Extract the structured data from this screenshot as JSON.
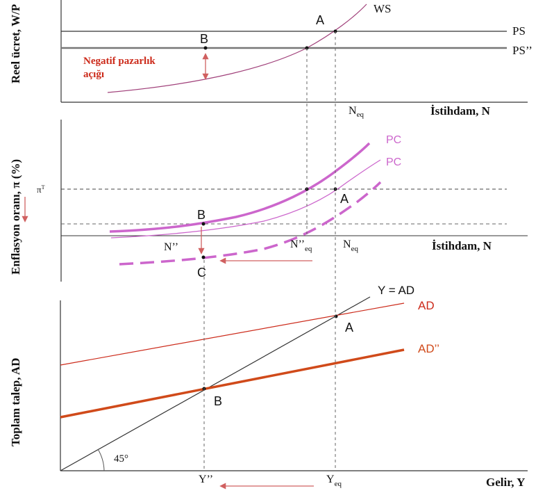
{
  "colors": {
    "axis": "#333333",
    "guide": "#555555",
    "ws": "#a0407a",
    "pc": "#cc66cc",
    "ad": "#cc2a1a",
    "ad_new": "#d04a1a",
    "arrow": "#d06060",
    "label_red": "#cc2a1a"
  },
  "panel1": {
    "ylabel": "Reel ücret, W/P",
    "xlabel": "İstihdam, N",
    "ps_label": "PS",
    "ps_new_label": "PS’’",
    "ws_label": "WS",
    "point_a": "A",
    "point_b": "B",
    "gap_label_line1": "Negatif pazarlık",
    "gap_label_line2": "açığı",
    "neq_main": "N",
    "neq_sub": "eq"
  },
  "panel2": {
    "ylabel": "Enflasyon oranı, π (%)",
    "xlabel": "İstihdam, N",
    "pc_label_1": "PC",
    "pc_label_2": "PC",
    "pi_label": "π",
    "pi_sup": "T",
    "point_a": "A",
    "point_b": "B",
    "point_c": "C",
    "n_new_main": "N’’",
    "n_new_eq_main": "N’’",
    "n_new_eq_sub": "eq",
    "neq_main": "N",
    "neq_sub": "eq"
  },
  "panel3": {
    "ylabel": "Toplam talep, AD",
    "xlabel": "Gelir, Y",
    "yad_label": "Y = AD",
    "ad_label": "AD",
    "ad_new_label": "AD’’",
    "angle_label": "45°",
    "point_a": "A",
    "point_b": "B",
    "y_new_label": "Y’’",
    "yeq_main": "Y",
    "yeq_sub": "eq"
  }
}
